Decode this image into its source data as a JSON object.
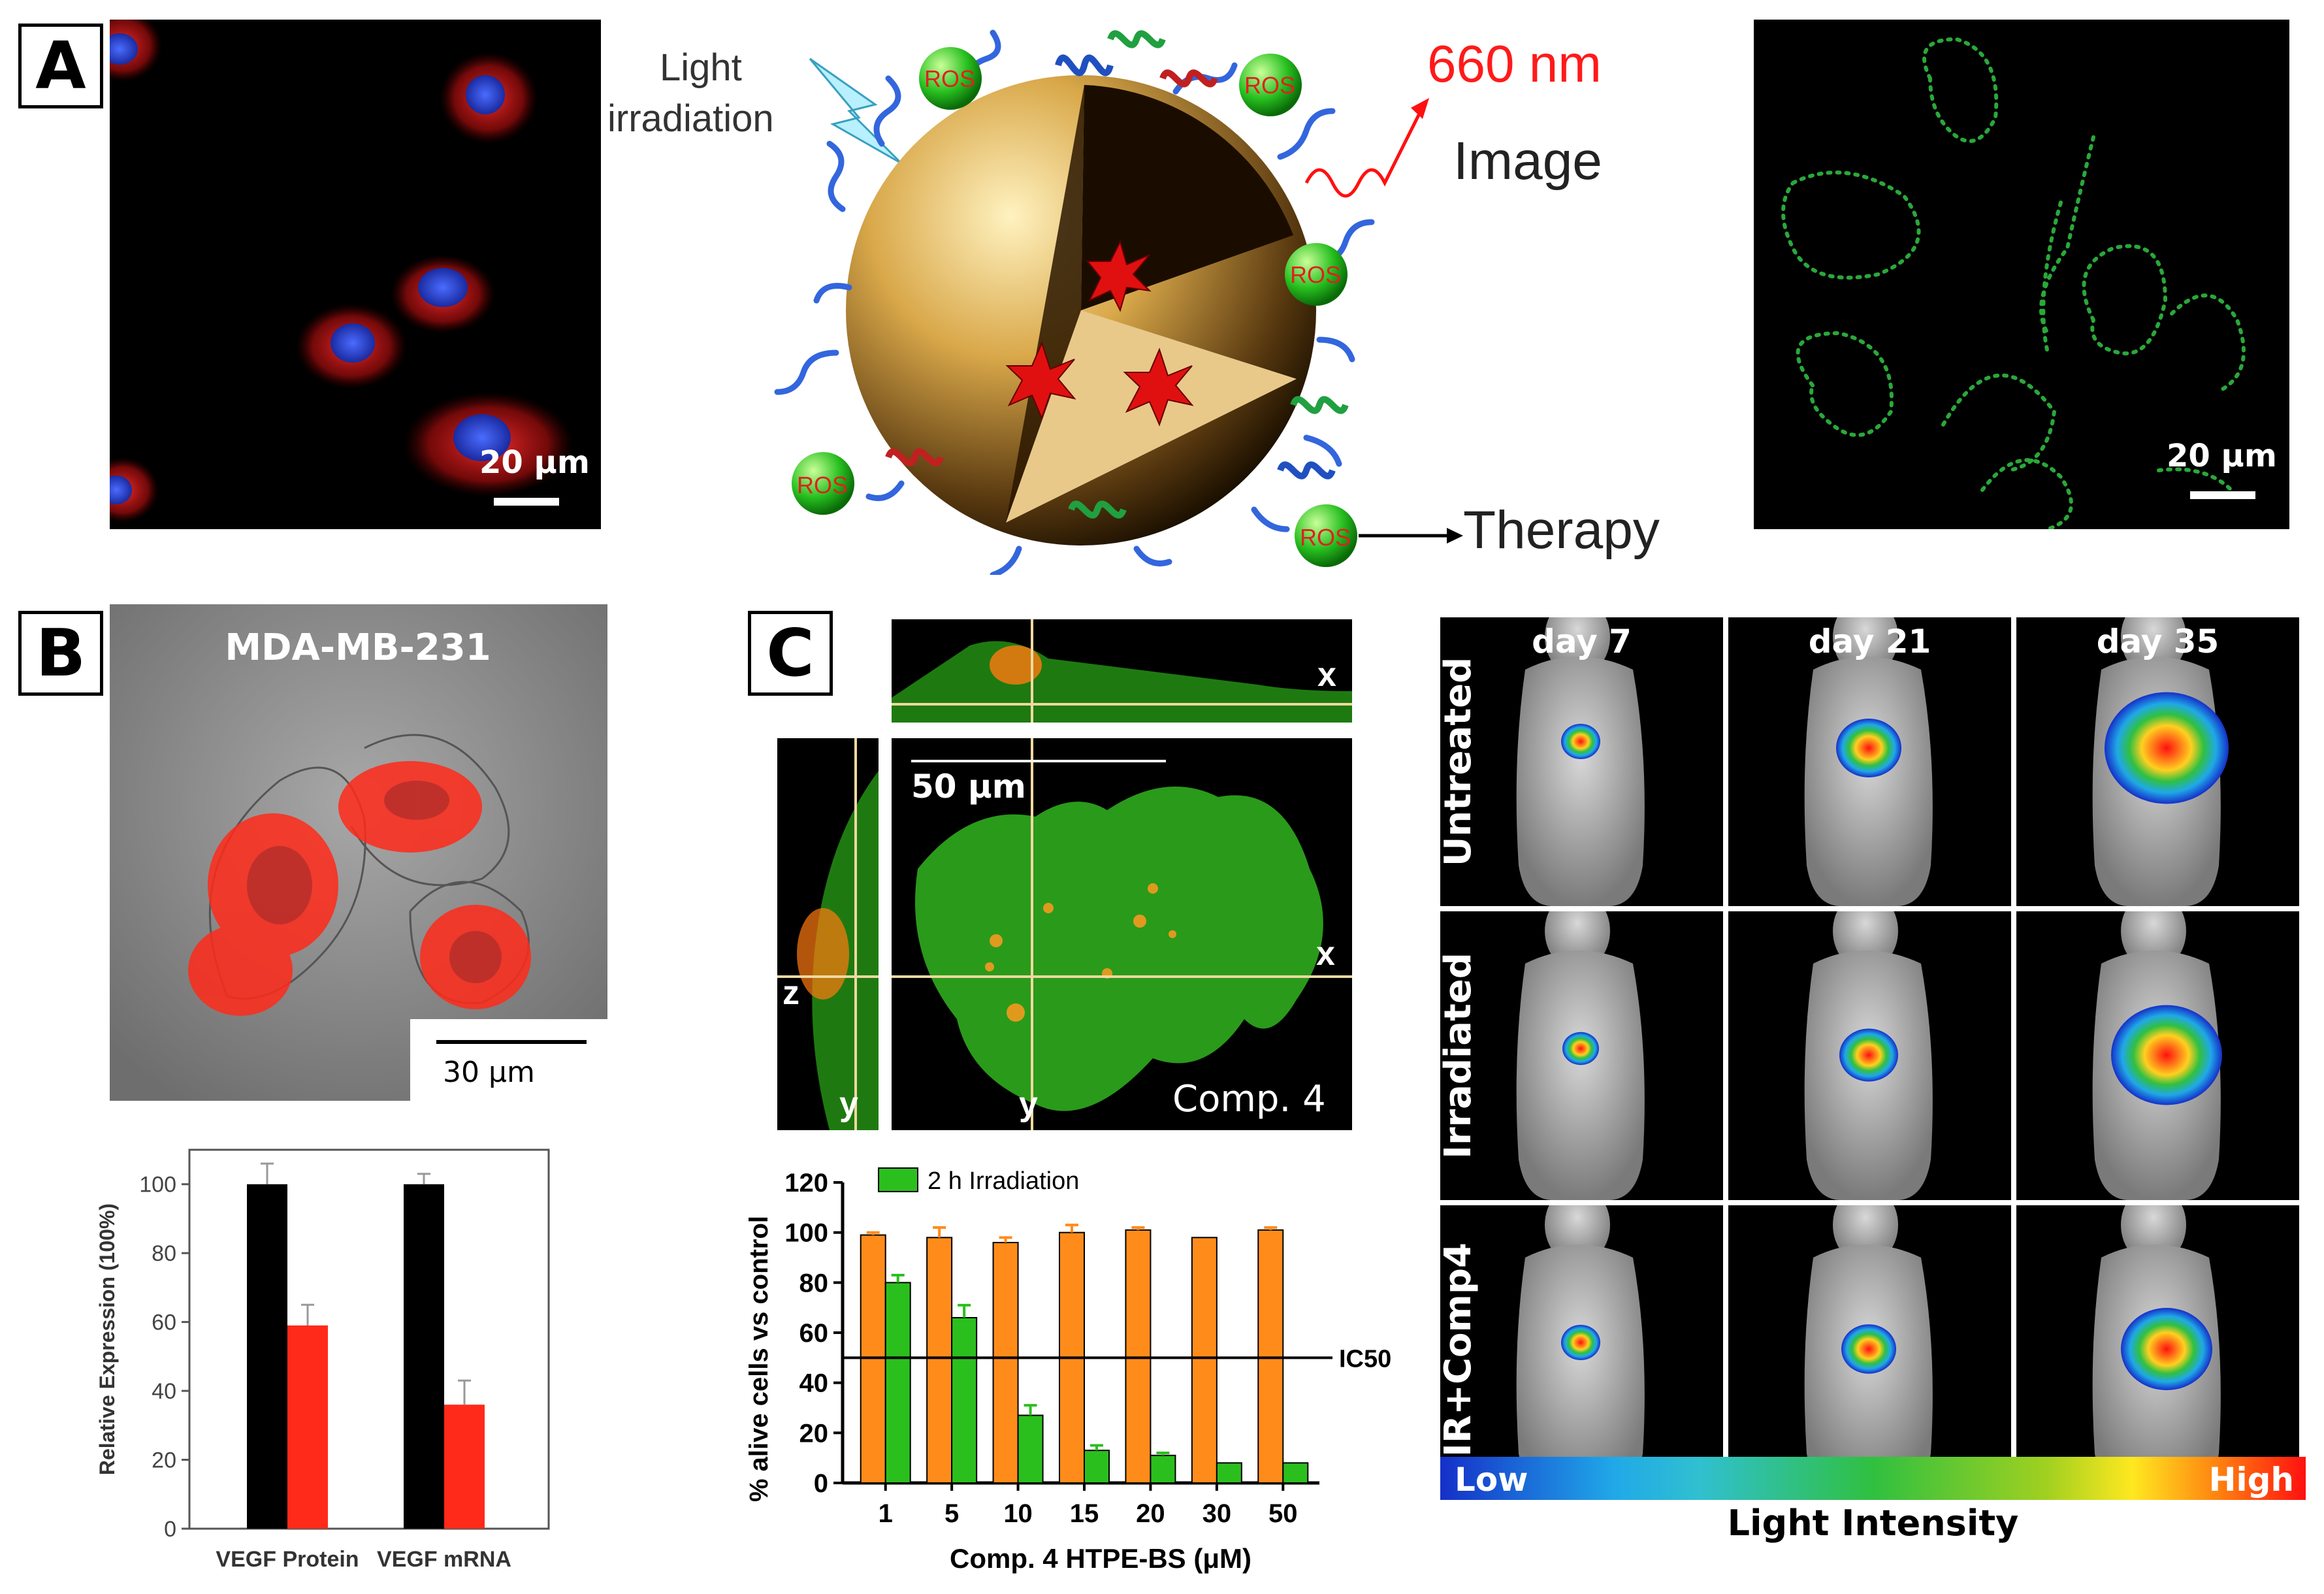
{
  "panels": {
    "a": "A",
    "b": "B",
    "c": "C"
  },
  "panelA": {
    "scale_left": "20 μm",
    "scale_right": "20 μm",
    "light_text": "Light",
    "irradiation_text": "irradiation",
    "wavelength": "660 nm",
    "image_label": "Image",
    "therapy_label": "Therapy",
    "ros": "ROS"
  },
  "panelB": {
    "cell_line": "MDA-MB-231",
    "scale": "30 μm"
  },
  "panelC": {
    "scale": "50 μm",
    "comp_label": "Comp. 4",
    "axis_x": "x",
    "axis_y": "y",
    "axis_z": "z"
  },
  "mice": {
    "days": [
      "day 7",
      "day 21",
      "day 35"
    ],
    "rows": [
      "Untreated",
      "Irradiated",
      "IR+Comp4"
    ],
    "colorbar_low": "Low",
    "colorbar_high": "High",
    "colorbar_title": "Light Intensity"
  },
  "chart_data": [
    {
      "type": "bar",
      "ylabel": "Relative Expression (100%)",
      "categories": [
        "VEGF Protein",
        "VEGF mRNA"
      ],
      "ylim": [
        0,
        110
      ],
      "yticks": [
        0,
        20,
        40,
        60,
        80,
        100
      ],
      "series": [
        {
          "values": [
            100,
            100
          ],
          "errors": [
            6,
            3
          ],
          "color": "#000000"
        },
        {
          "values": [
            59,
            36
          ],
          "errors": [
            6,
            7
          ],
          "color": "#ff2a1a"
        }
      ]
    },
    {
      "type": "bar",
      "xlabel": "Comp. 4 HTPE-BS (μM)",
      "ylabel": "% alive cells vs control",
      "categories": [
        "1",
        "5",
        "10",
        "15",
        "20",
        "30",
        "50"
      ],
      "ylim": [
        0,
        120
      ],
      "yticks": [
        0,
        20,
        40,
        60,
        80,
        100,
        120
      ],
      "legend": "top-left",
      "reference_line": {
        "value": 50,
        "label": "IC50"
      },
      "series": [
        {
          "values": [
            99,
            98,
            96,
            100,
            101,
            98,
            101
          ],
          "errors": [
            1,
            4,
            2,
            3,
            1,
            0,
            1
          ],
          "color": "#ff8c1a"
        },
        {
          "name": "2 h Irradiation",
          "values": [
            80,
            66,
            27,
            13,
            11,
            8,
            8
          ],
          "errors": [
            3,
            5,
            4,
            2,
            1,
            0,
            0
          ],
          "color": "#2bbf1e"
        }
      ]
    }
  ]
}
